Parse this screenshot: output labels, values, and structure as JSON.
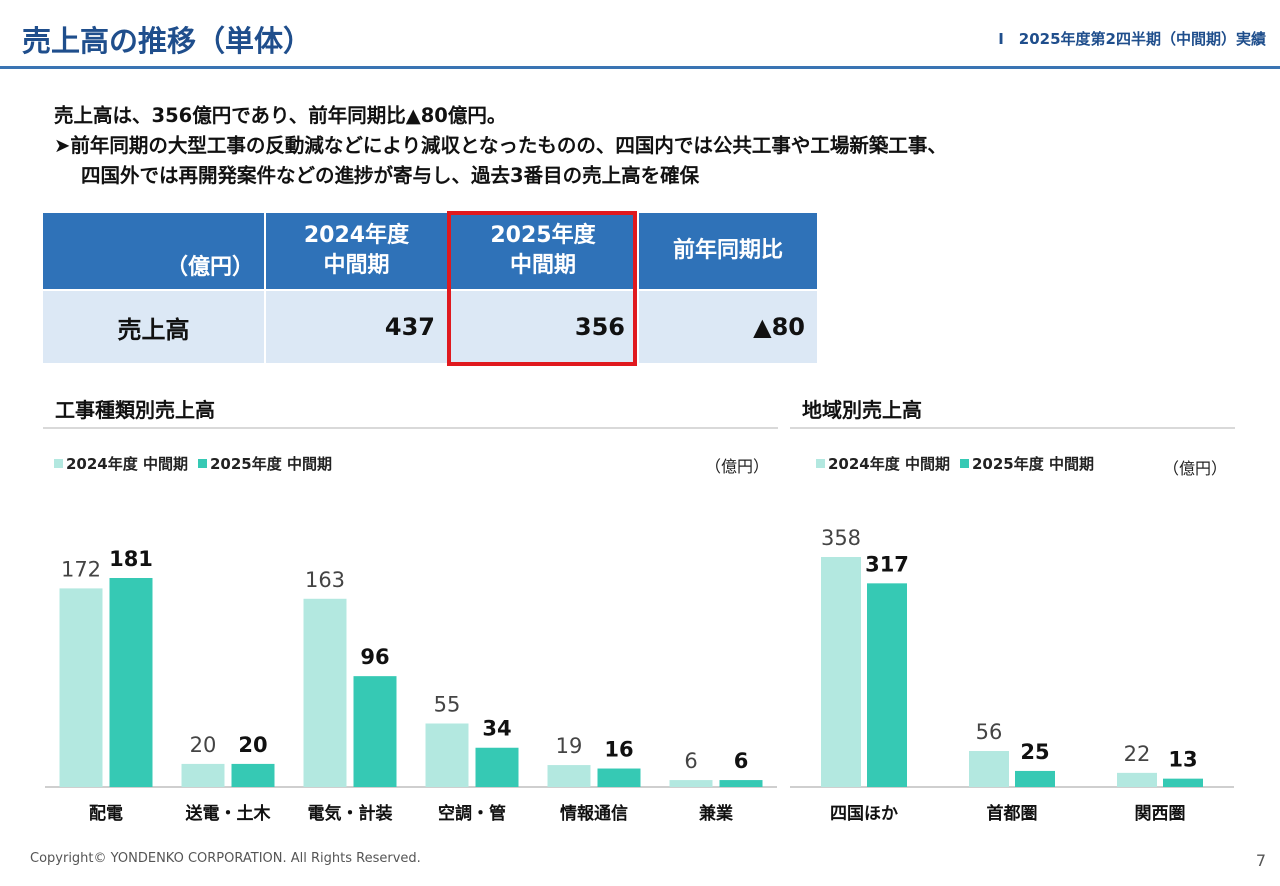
{
  "header": {
    "title": "売上高の推移（単体）",
    "section": "Ⅰ　2025年度第2四半期（中間期）実績"
  },
  "summary": {
    "line1": "売上高は、356億円であり、前年同期比▲80億円。",
    "bullet": "➤",
    "line2": "前年同期の大型工事の反動減などにより減収となったものの、四国内では公共工事や工場新築工事、",
    "line3": "四国外では再開発案件などの進捗が寄与し、過去3番目の売上高を確保"
  },
  "table": {
    "unit": "（億円）",
    "col_prev": [
      "2024年度",
      "中間期"
    ],
    "col_curr": [
      "2025年度",
      "中間期"
    ],
    "col_diff": "前年同期比",
    "row_label": "売上高",
    "prev": "437",
    "curr": "356",
    "diff": "▲80"
  },
  "colors": {
    "prev_series": "#b3e8e0",
    "curr_series": "#36c9b4",
    "accent": "#2f72b8",
    "highlight": "#e0191e"
  },
  "chart_data": [
    {
      "type": "bar",
      "title": "工事種類別売上高",
      "unit": "（億円）",
      "categories": [
        "配電",
        "送電・土木",
        "電気・計装",
        "空調・管",
        "情報通信",
        "兼業"
      ],
      "series": [
        {
          "name": "2024年度 中間期",
          "values": [
            172,
            20,
            163,
            55,
            19,
            6
          ]
        },
        {
          "name": "2025年度 中間期",
          "values": [
            181,
            20,
            96,
            34,
            16,
            6
          ]
        }
      ],
      "ylim": [
        0,
        181
      ],
      "legend": "top-left",
      "grid": false
    },
    {
      "type": "bar",
      "title": "地域別売上高",
      "unit": "（億円）",
      "categories": [
        "四国ほか",
        "首都圏",
        "関西圏"
      ],
      "series": [
        {
          "name": "2024年度 中間期",
          "values": [
            358,
            56,
            22
          ]
        },
        {
          "name": "2025年度 中間期",
          "values": [
            317,
            25,
            13
          ]
        }
      ],
      "ylim": [
        0,
        358
      ],
      "legend": "top-left",
      "grid": false
    }
  ],
  "footer": {
    "copyright": "Copyright© YONDENKO CORPORATION. All Rights Reserved.",
    "page": "7"
  }
}
